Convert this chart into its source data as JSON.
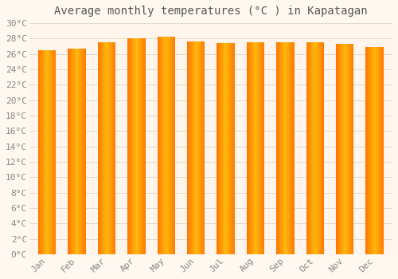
{
  "title": "Average monthly temperatures (°C ) in Kapatagan",
  "months": [
    "Jan",
    "Feb",
    "Mar",
    "Apr",
    "May",
    "Jun",
    "Jul",
    "Aug",
    "Sep",
    "Oct",
    "Nov",
    "Dec"
  ],
  "values": [
    26.5,
    26.7,
    27.5,
    28.0,
    28.2,
    27.6,
    27.4,
    27.5,
    27.5,
    27.5,
    27.3,
    26.9
  ],
  "bar_color_center": "#FFCC44",
  "bar_color_edge": "#FF8800",
  "ylim": [
    0,
    30
  ],
  "ytick_step": 2,
  "background_color": "#FFF8F0",
  "plot_bg_color": "#FFF5EC",
  "grid_color": "#DDDDCC",
  "title_fontsize": 10,
  "tick_fontsize": 8,
  "font_family": "monospace"
}
